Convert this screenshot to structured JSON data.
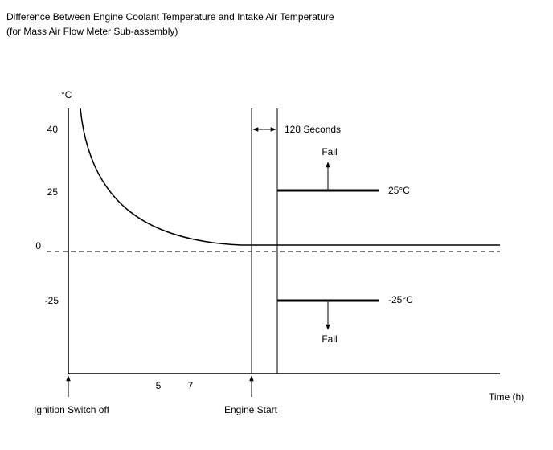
{
  "header": {
    "title": "Difference Between Engine Coolant Temperature and Intake Air Temperature",
    "subtitle": "(for Mass Air Flow Meter Sub-assembly)"
  },
  "y_axis": {
    "unit": "°C",
    "ticks": [
      "40",
      "25",
      "0",
      "-25"
    ]
  },
  "x_axis": {
    "label": "Time (h)",
    "ticks": [
      "5",
      "7"
    ]
  },
  "annotations": {
    "interval": "128 Seconds",
    "upper_threshold": "25°C",
    "lower_threshold": "-25°C",
    "upper_result": "Fail",
    "lower_result": "Fail",
    "ignition": "Ignition Switch off",
    "engine_start": "Engine Start"
  }
}
